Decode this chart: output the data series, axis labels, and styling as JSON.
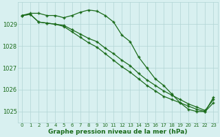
{
  "hours": [
    0,
    1,
    2,
    3,
    4,
    5,
    6,
    7,
    8,
    9,
    10,
    11,
    12,
    13,
    14,
    15,
    16,
    17,
    18,
    19,
    20,
    21,
    22,
    23
  ],
  "line1": [
    1029.4,
    1029.5,
    1029.5,
    1029.4,
    1029.4,
    1029.3,
    1029.4,
    1029.55,
    1029.65,
    1029.6,
    1029.4,
    1029.1,
    1028.5,
    1028.2,
    1027.5,
    1027.0,
    1026.5,
    1026.2,
    1025.8,
    1025.4,
    1025.1,
    1025.0,
    1025.0,
    1025.4
  ],
  "line2": [
    1029.4,
    1029.45,
    1029.1,
    1029.05,
    1029.0,
    1028.95,
    1028.75,
    1028.55,
    1028.35,
    1028.2,
    1027.9,
    1027.65,
    1027.35,
    1027.1,
    1026.75,
    1026.45,
    1026.2,
    1025.95,
    1025.75,
    1025.55,
    1025.35,
    1025.2,
    1025.05,
    1025.55
  ],
  "line3": [
    1029.4,
    1029.45,
    1029.1,
    1029.05,
    1029.0,
    1028.9,
    1028.65,
    1028.4,
    1028.15,
    1027.95,
    1027.65,
    1027.35,
    1027.05,
    1026.8,
    1026.5,
    1026.2,
    1025.95,
    1025.7,
    1025.55,
    1025.4,
    1025.25,
    1025.1,
    1025.0,
    1025.65
  ],
  "line_color": "#1a6b1a",
  "bg_color": "#d8f0f0",
  "grid_color": "#b0d4d4",
  "xlabel": "Graphe pression niveau de la mer (hPa)",
  "ylim": [
    1024.5,
    1030.0
  ],
  "yticks": [
    1025,
    1026,
    1027,
    1028,
    1029
  ],
  "xticks": [
    0,
    1,
    2,
    3,
    4,
    5,
    6,
    7,
    8,
    9,
    10,
    11,
    12,
    13,
    14,
    15,
    16,
    17,
    18,
    19,
    20,
    21,
    22,
    23
  ]
}
